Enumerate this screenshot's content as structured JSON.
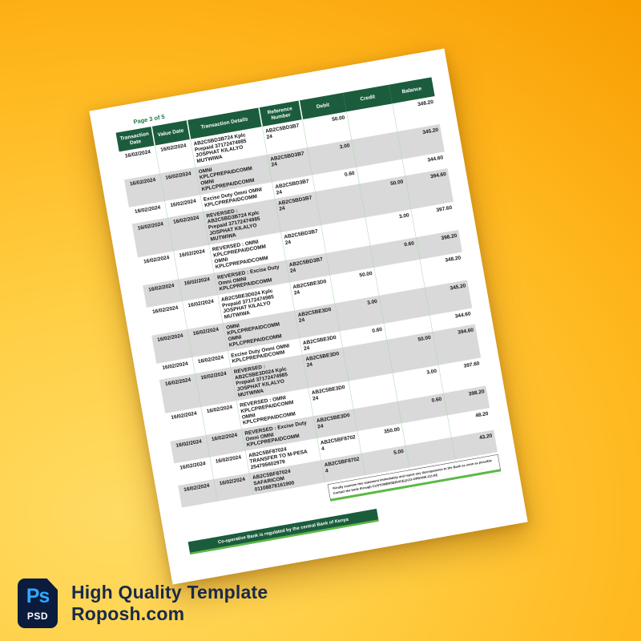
{
  "background": {
    "gradient_outer_orange": "#f29300",
    "gradient_inner_yellow": "#ffdb63"
  },
  "statement": {
    "page_label": "Page 3 of  5",
    "columns": [
      "Transaction Date",
      "Value Date",
      "Transaction Details",
      "Reference Number",
      "Debit",
      "Credit",
      "Balance"
    ],
    "rows": [
      {
        "transaction_date": "16/02/2024",
        "value_date": "16/02/2024",
        "details": "AB2C5BD3B724 Kplc Prepaid 37172474985 JOSPHAT KILALYO MUTWIWA",
        "reference": "AB2C5BD3B724",
        "debit": "50.00",
        "credit": "",
        "balance": "348.20"
      },
      {
        "transaction_date": "16/02/2024",
        "value_date": "16/02/2024",
        "details": "OMNI KPLCPREPAIDCOMM OMNI KPLCPREPAIDCOMM",
        "reference": "AB2C5BD3B724",
        "debit": "3.00",
        "credit": "",
        "balance": "345.20"
      },
      {
        "transaction_date": "16/02/2024",
        "value_date": "16/02/2024",
        "details": "Excise Duty Omni OMNI KPLCPREPAIDCOMM",
        "reference": "AB2C5BD3B724",
        "debit": "0.60",
        "credit": "",
        "balance": "344.60"
      },
      {
        "transaction_date": "16/02/2024",
        "value_date": "16/02/2024",
        "details": "REVERSED : AB2C5BD3B724 Kplc Prepaid 37172474985 JOSPHAT KILALYO MUTWIWA",
        "reference": "AB2C5BD3B724",
        "debit": "",
        "credit": "50.00",
        "balance": "394.60"
      },
      {
        "transaction_date": "16/02/2024",
        "value_date": "16/02/2024",
        "details": "REVERSED : OMNI KPLCPREPAIDCOMM OMNI KPLCPREPAIDCOMM",
        "reference": "AB2C5BD3B724",
        "debit": "",
        "credit": "3.00",
        "balance": "397.60"
      },
      {
        "transaction_date": "16/02/2024",
        "value_date": "16/02/2024",
        "details": "REVERSED : Excise Duty Omni OMNI KPLCPREPAIDCOMM",
        "reference": "AB2C5BD3B724",
        "debit": "",
        "credit": "0.60",
        "balance": "398.20"
      },
      {
        "transaction_date": "16/02/2024",
        "value_date": "16/02/2024",
        "details": "AB2C5BE3D024 Kplc Prepaid 37172474985 JOSPHAT KILALYO MUTWIWA",
        "reference": "AB2C5BE3D024",
        "debit": "50.00",
        "credit": "",
        "balance": "348.20"
      },
      {
        "transaction_date": "16/02/2024",
        "value_date": "16/02/2024",
        "details": "OMNI KPLCPREPAIDCOMM OMNI KPLCPREPAIDCOMM",
        "reference": "AB2C5BE3D024",
        "debit": "3.00",
        "credit": "",
        "balance": "345.20"
      },
      {
        "transaction_date": "16/02/2024",
        "value_date": "16/02/2024",
        "details": "Excise Duty Omni OMNI KPLCPREPAIDCOMM",
        "reference": "AB2C5BE3D024",
        "debit": "0.60",
        "credit": "",
        "balance": "344.60"
      },
      {
        "transaction_date": "16/02/2024",
        "value_date": "16/02/2024",
        "details": "REVERSED : AB2C5BE3D024 Kplc Prepaid 37172474985 JOSPHAT KILALYO MUTWIWA",
        "reference": "AB2C5BE3D024",
        "debit": "",
        "credit": "50.00",
        "balance": "394.60"
      },
      {
        "transaction_date": "16/02/2024",
        "value_date": "16/02/2024",
        "details": "REVERSED : OMNI KPLCPREPAIDCOMM OMNI KPLCPREPAIDCOMM",
        "reference": "AB2C5BE3D024",
        "debit": "",
        "credit": "3.00",
        "balance": "397.60"
      },
      {
        "transaction_date": "16/02/2024",
        "value_date": "16/02/2024",
        "details": "REVERSED : Excise Duty Omni OMNI KPLCPREPAIDCOMM",
        "reference": "AB2C5BE3D024",
        "debit": "",
        "credit": "0.60",
        "balance": "398.20"
      },
      {
        "transaction_date": "16/02/2024",
        "value_date": "16/02/2024",
        "details": "AB2C5BF87024 TRANSFER TO M-PESA 254795602979",
        "reference": "AB2C5BF87024",
        "debit": "350.00",
        "credit": "",
        "balance": "48.20"
      },
      {
        "transaction_date": "16/02/2024",
        "value_date": "16/02/2024",
        "details": "AB2C5BF87024 SAFARICOM 01108878161900",
        "reference": "AB2C5BF87024",
        "debit": "5.00",
        "credit": "",
        "balance": "43.20"
      }
    ],
    "note": {
      "asterisk": "*",
      "line1": "Kindly examine this statement immediately and report any discrepancies to the Bank as soon as possible",
      "line2": "Contact the bank through CUSTOMERSERVICE@CO-OPBANK.CO.KE"
    },
    "footer_bar": "Co-operative Bank is regulated by the central Bank of Kenya",
    "colors": {
      "header_green": "#1b5c3c",
      "accent_green": "#5cb947",
      "row_gray": "#d9d9d9",
      "grid_green": "#a8d4a8",
      "page_label_green": "#1e7a41",
      "note_asterisk_red": "#cc0000"
    }
  },
  "brand": {
    "badge_ps": "Ps",
    "badge_psd": "PSD",
    "caption_line1": "High Quality Template",
    "caption_line2": "Roposh.com",
    "badge_bg": "#0a1b3e",
    "ps_blue": "#31a8ff",
    "caption_navy": "#17294d"
  }
}
